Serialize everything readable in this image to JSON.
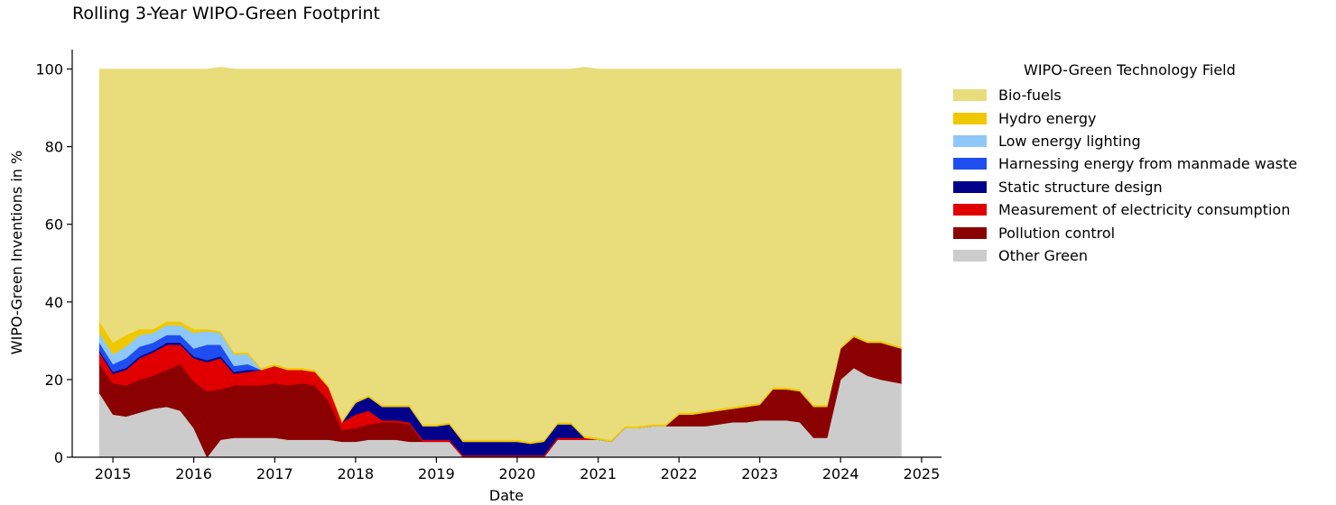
{
  "chart_data": {
    "type": "area",
    "stacked": true,
    "title": "Rolling 3-Year WIPO-Green Footprint",
    "xlabel": "Date",
    "ylabel": "WIPO-Green Inventions in %",
    "xlim": [
      "2014-07-01",
      "2025-04-01"
    ],
    "ylim": [
      0,
      105
    ],
    "x_ticks": [
      "2015",
      "2016",
      "2017",
      "2018",
      "2019",
      "2020",
      "2021",
      "2022",
      "2023",
      "2024",
      "2025"
    ],
    "y_ticks": [
      "0",
      "20",
      "40",
      "60",
      "80",
      "100"
    ],
    "grid": false,
    "legend": {
      "title": "WIPO-Green Technology Field",
      "placement": "outside-right"
    },
    "x": [
      "2014-11-01",
      "2015-01-01",
      "2015-03-01",
      "2015-05-01",
      "2015-07-01",
      "2015-09-01",
      "2015-11-01",
      "2016-01-01",
      "2016-03-01",
      "2016-05-01",
      "2016-07-01",
      "2016-09-01",
      "2016-11-01",
      "2017-01-01",
      "2017-03-01",
      "2017-05-01",
      "2017-07-01",
      "2017-09-01",
      "2017-11-01",
      "2018-01-01",
      "2018-03-01",
      "2018-05-01",
      "2018-07-01",
      "2018-09-01",
      "2018-11-01",
      "2019-01-01",
      "2019-03-01",
      "2019-05-01",
      "2019-07-01",
      "2019-09-01",
      "2019-11-01",
      "2020-01-01",
      "2020-03-01",
      "2020-05-01",
      "2020-07-01",
      "2020-09-01",
      "2020-11-01",
      "2021-01-01",
      "2021-03-01",
      "2021-05-01",
      "2021-07-01",
      "2021-09-01",
      "2021-11-01",
      "2022-01-01",
      "2022-03-01",
      "2022-05-01",
      "2022-07-01",
      "2022-09-01",
      "2022-11-01",
      "2023-01-01",
      "2023-03-01",
      "2023-05-01",
      "2023-07-01",
      "2023-09-01",
      "2023-11-01",
      "2024-01-01",
      "2024-03-01",
      "2024-05-01",
      "2024-07-01",
      "2024-10-01"
    ],
    "series": [
      {
        "name": "Other Green",
        "color": "#cccccc",
        "values": [
          16.5,
          11.0,
          10.5,
          11.5,
          12.5,
          13.0,
          12.0,
          7.5,
          0.0,
          4.5,
          5.0,
          5.0,
          5.0,
          5.0,
          4.5,
          4.5,
          4.5,
          4.5,
          4.0,
          4.0,
          4.5,
          4.5,
          4.5,
          4.0,
          4.0,
          4.0,
          4.0,
          0.0,
          0.0,
          0.0,
          0.0,
          0.0,
          0.0,
          0.0,
          4.5,
          4.5,
          4.5,
          4.5,
          4.0,
          7.5,
          7.5,
          8.0,
          8.0,
          8.0,
          8.0,
          8.0,
          8.5,
          9.0,
          9.0,
          9.5,
          9.5,
          9.5,
          9.0,
          5.0,
          5.0,
          20.0,
          23.0,
          21.0,
          20.0,
          19.0
        ]
      },
      {
        "name": "Pollution control",
        "color": "#8b0000",
        "values": [
          7.5,
          8.0,
          8.0,
          8.5,
          8.5,
          9.5,
          12.0,
          12.0,
          17.0,
          13.0,
          13.5,
          13.5,
          13.5,
          14.0,
          14.0,
          14.5,
          14.0,
          10.0,
          3.0,
          3.5,
          4.0,
          4.5,
          4.5,
          4.5,
          0.0,
          0.0,
          0.0,
          0.0,
          0.0,
          0.0,
          0.0,
          0.0,
          0.0,
          0.0,
          0.0,
          0.0,
          0.0,
          0.0,
          0.0,
          0.0,
          0.0,
          0.0,
          0.0,
          3.0,
          3.0,
          3.5,
          3.5,
          3.5,
          4.0,
          4.0,
          8.0,
          8.0,
          8.0,
          8.0,
          8.0,
          8.0,
          8.0,
          8.5,
          9.5,
          9.0
        ]
      },
      {
        "name": "Measurement of electricity consumption",
        "color": "#e00000",
        "values": [
          3.0,
          2.5,
          4.0,
          5.5,
          6.0,
          6.5,
          5.0,
          6.0,
          7.5,
          8.0,
          3.0,
          3.5,
          4.0,
          4.5,
          4.0,
          3.5,
          3.5,
          3.5,
          2.0,
          3.5,
          3.5,
          0.5,
          0.5,
          0.5,
          0.5,
          0.5,
          0.5,
          0.5,
          0.5,
          0.5,
          0.5,
          0.5,
          0.5,
          0.5,
          0.5,
          0.5,
          0.5,
          0.0,
          0.0,
          0.0,
          0.0,
          0.0,
          0.0,
          0.0,
          0.0,
          0.0,
          0.0,
          0.0,
          0.0,
          0.0,
          0.0,
          0.0,
          0.0,
          0.0,
          0.0,
          0.0,
          0.0,
          0.0,
          0.0,
          0.0
        ]
      },
      {
        "name": "Static structure design",
        "color": "#00008b",
        "values": [
          0.5,
          0.5,
          0.5,
          0.5,
          0.5,
          0.5,
          0.5,
          0.5,
          0.5,
          0.5,
          0.5,
          0.5,
          0.0,
          0.0,
          0.0,
          0.0,
          0.0,
          0.0,
          0.0,
          3.0,
          3.5,
          3.5,
          3.5,
          4.0,
          3.5,
          3.5,
          4.0,
          3.5,
          3.5,
          3.5,
          3.5,
          3.5,
          3.0,
          3.5,
          3.5,
          3.5,
          0.0,
          0.0,
          0.0,
          0.0,
          0.0,
          0.0,
          0.0,
          0.0,
          0.0,
          0.0,
          0.0,
          0.0,
          0.0,
          0.0,
          0.0,
          0.0,
          0.0,
          0.0,
          0.0,
          0.0,
          0.0,
          0.0,
          0.0,
          0.0
        ]
      },
      {
        "name": "Harnessing energy from manmade waste",
        "color": "#1e4ef0",
        "values": [
          2.0,
          2.0,
          2.5,
          2.5,
          2.0,
          2.0,
          2.0,
          2.0,
          4.0,
          3.0,
          1.5,
          1.5,
          0.0,
          0.0,
          0.0,
          0.0,
          0.0,
          0.0,
          0.0,
          0.0,
          0.0,
          0.0,
          0.0,
          0.0,
          0.0,
          0.0,
          0.0,
          0.0,
          0.0,
          0.0,
          0.0,
          0.0,
          0.0,
          0.0,
          0.0,
          0.0,
          0.0,
          0.0,
          0.0,
          0.0,
          0.0,
          0.0,
          0.0,
          0.0,
          0.0,
          0.0,
          0.0,
          0.0,
          0.0,
          0.0,
          0.0,
          0.0,
          0.0,
          0.0,
          0.0,
          0.0,
          0.0,
          0.0,
          0.0,
          0.0
        ]
      },
      {
        "name": "Low energy lighting",
        "color": "#8ec8fa",
        "values": [
          2.5,
          2.5,
          3.0,
          3.0,
          2.5,
          2.5,
          2.5,
          4.0,
          3.5,
          3.0,
          3.0,
          2.5,
          0.0,
          0.0,
          0.0,
          0.0,
          0.0,
          0.0,
          0.0,
          0.0,
          0.0,
          0.0,
          0.0,
          0.0,
          0.0,
          0.0,
          0.0,
          0.0,
          0.0,
          0.0,
          0.0,
          0.0,
          0.0,
          0.0,
          0.0,
          0.0,
          0.0,
          0.0,
          0.0,
          0.0,
          0.0,
          0.0,
          0.0,
          0.0,
          0.0,
          0.0,
          0.0,
          0.0,
          0.0,
          0.0,
          0.0,
          0.0,
          0.0,
          0.0,
          0.0,
          0.0,
          0.0,
          0.0,
          0.0,
          0.0
        ]
      },
      {
        "name": "Hydro energy",
        "color": "#f0c800",
        "values": [
          3.0,
          3.0,
          3.0,
          1.5,
          1.0,
          1.0,
          1.0,
          1.0,
          0.5,
          0.5,
          0.5,
          0.5,
          0.5,
          0.5,
          0.5,
          0.5,
          0.5,
          0.5,
          0.5,
          0.5,
          0.5,
          0.5,
          0.5,
          0.5,
          0.5,
          0.5,
          0.5,
          0.5,
          0.5,
          0.5,
          0.5,
          0.5,
          0.5,
          0.5,
          0.5,
          0.5,
          0.5,
          0.5,
          0.5,
          0.5,
          0.5,
          0.5,
          0.5,
          0.5,
          0.5,
          0.5,
          0.5,
          0.5,
          0.5,
          0.5,
          0.5,
          0.5,
          0.5,
          0.5,
          0.5,
          0.5,
          0.5,
          0.5,
          0.5,
          0.5
        ]
      },
      {
        "name": "Bio-fuels",
        "color": "#e9dc7a",
        "values": [
          65.0,
          70.5,
          68.5,
          67.0,
          67.0,
          65.0,
          65.0,
          67.0,
          67.0,
          68.0,
          73.0,
          73.0,
          77.0,
          76.0,
          77.0,
          77.0,
          77.5,
          81.5,
          90.5,
          85.5,
          84.0,
          86.5,
          86.5,
          86.5,
          91.5,
          91.5,
          91.0,
          95.5,
          95.5,
          95.5,
          95.5,
          95.5,
          96.0,
          95.5,
          91.0,
          91.0,
          95.0,
          95.0,
          95.5,
          92.0,
          92.0,
          91.5,
          91.5,
          88.5,
          88.5,
          88.0,
          87.5,
          87.0,
          86.5,
          86.0,
          82.0,
          82.0,
          82.5,
          86.5,
          86.5,
          71.5,
          68.5,
          70.0,
          70.0,
          71.5
        ]
      }
    ]
  }
}
